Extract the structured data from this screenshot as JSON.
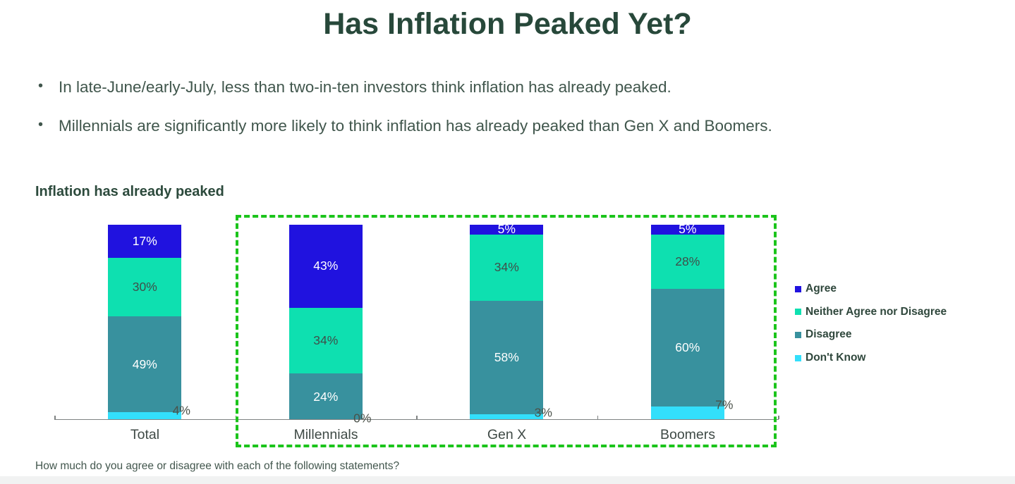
{
  "page": {
    "title": "Has Inflation Peaked Yet?",
    "bullets": [
      "In late-June/early-July, less than two-in-ten investors think inflation has already peaked.",
      "Millennials are significantly more likely to think inflation has already peaked than Gen X and Boomers."
    ],
    "footer": "How much do you agree or disagree with each of the following statements?"
  },
  "chart_data": {
    "type": "bar",
    "variant": "stacked-percent-column",
    "title": "Inflation has already peaked",
    "categories": [
      "Total",
      "Millennials",
      "Gen X",
      "Boomers"
    ],
    "series": [
      {
        "name": "Agree",
        "color": "#2012df",
        "label_color": "#ffffff",
        "values": [
          17,
          43,
          5,
          5
        ]
      },
      {
        "name": "Neither Agree nor Disagree",
        "color": "#0ee0b0",
        "label_color": "#3f4f4a",
        "values": [
          30,
          34,
          34,
          28
        ]
      },
      {
        "name": "Disagree",
        "color": "#38919e",
        "label_color": "#ffffff",
        "values": [
          49,
          24,
          58,
          60
        ]
      },
      {
        "name": "Don't Know",
        "color": "#33dffb",
        "label_color": "#4a5149",
        "values": [
          4,
          0,
          3,
          7
        ]
      }
    ],
    "data_label_format": "{value}%",
    "ylim": [
      0,
      100
    ],
    "grid": false,
    "legend_position": "right",
    "highlighted_categories": [
      "Millennials",
      "Gen X",
      "Boomers"
    ],
    "highlight_box_color": "#1bc41b",
    "axis_color": "#7e8282"
  },
  "colors": {
    "title_text": "#27483a",
    "body_text": "#40564c",
    "category_text": "#3f4a46",
    "background": "#ffffff"
  }
}
